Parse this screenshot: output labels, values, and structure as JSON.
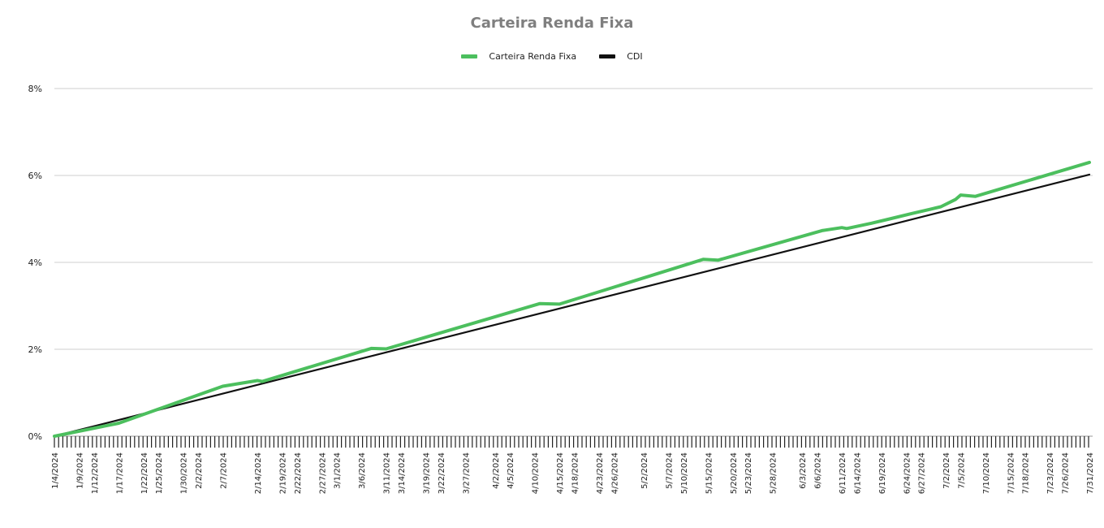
{
  "chart_data": {
    "type": "line",
    "title": "Carteira Renda Fixa",
    "xlabel": "",
    "ylabel": "",
    "legend_position": "top",
    "grid": true,
    "y_ticks": [
      "0%",
      "2%",
      "4%",
      "6%",
      "8%"
    ],
    "ylim": [
      0,
      8
    ],
    "x_range": [
      "2024-01-04",
      "2024-07-31"
    ],
    "x_tick_labels": [
      {
        "date": "2024-01-04",
        "label": "1/4/2024"
      },
      {
        "date": "2024-01-09",
        "label": "1/9/2024"
      },
      {
        "date": "2024-01-12",
        "label": "1/12/2024"
      },
      {
        "date": "2024-01-17",
        "label": "1/17/2024"
      },
      {
        "date": "2024-01-22",
        "label": "1/22/2024"
      },
      {
        "date": "2024-01-25",
        "label": "1/25/2024"
      },
      {
        "date": "2024-01-30",
        "label": "1/30/2024"
      },
      {
        "date": "2024-02-02",
        "label": "2/2/2024"
      },
      {
        "date": "2024-02-07",
        "label": "2/7/2024"
      },
      {
        "date": "2024-02-14",
        "label": "2/14/2024"
      },
      {
        "date": "2024-02-19",
        "label": "2/19/2024"
      },
      {
        "date": "2024-02-22",
        "label": "2/22/2024"
      },
      {
        "date": "2024-02-27",
        "label": "2/27/2024"
      },
      {
        "date": "2024-03-01",
        "label": "3/1/2024"
      },
      {
        "date": "2024-03-06",
        "label": "3/6/2024"
      },
      {
        "date": "2024-03-11",
        "label": "3/11/2024"
      },
      {
        "date": "2024-03-14",
        "label": "3/14/2024"
      },
      {
        "date": "2024-03-19",
        "label": "3/19/2024"
      },
      {
        "date": "2024-03-22",
        "label": "3/22/2024"
      },
      {
        "date": "2024-03-27",
        "label": "3/27/2024"
      },
      {
        "date": "2024-04-02",
        "label": "4/2/2024"
      },
      {
        "date": "2024-04-05",
        "label": "4/5/2024"
      },
      {
        "date": "2024-04-10",
        "label": "4/10/2024"
      },
      {
        "date": "2024-04-15",
        "label": "4/15/2024"
      },
      {
        "date": "2024-04-18",
        "label": "4/18/2024"
      },
      {
        "date": "2024-04-23",
        "label": "4/23/2024"
      },
      {
        "date": "2024-04-26",
        "label": "4/26/2024"
      },
      {
        "date": "2024-05-02",
        "label": "5/2/2024"
      },
      {
        "date": "2024-05-07",
        "label": "5/7/2024"
      },
      {
        "date": "2024-05-10",
        "label": "5/10/2024"
      },
      {
        "date": "2024-05-15",
        "label": "5/15/2024"
      },
      {
        "date": "2024-05-20",
        "label": "5/20/2024"
      },
      {
        "date": "2024-05-23",
        "label": "5/23/2024"
      },
      {
        "date": "2024-05-28",
        "label": "5/28/2024"
      },
      {
        "date": "2024-06-03",
        "label": "6/3/2024"
      },
      {
        "date": "2024-06-06",
        "label": "6/6/2024"
      },
      {
        "date": "2024-06-11",
        "label": "6/11/2024"
      },
      {
        "date": "2024-06-14",
        "label": "6/14/2024"
      },
      {
        "date": "2024-06-19",
        "label": "6/19/2024"
      },
      {
        "date": "2024-06-24",
        "label": "6/24/2024"
      },
      {
        "date": "2024-06-27",
        "label": "6/27/2024"
      },
      {
        "date": "2024-07-02",
        "label": "7/2/2024"
      },
      {
        "date": "2024-07-05",
        "label": "7/5/2024"
      },
      {
        "date": "2024-07-10",
        "label": "7/10/2024"
      },
      {
        "date": "2024-07-15",
        "label": "7/15/2024"
      },
      {
        "date": "2024-07-18",
        "label": "7/18/2024"
      },
      {
        "date": "2024-07-23",
        "label": "7/23/2024"
      },
      {
        "date": "2024-07-26",
        "label": "7/26/2024"
      },
      {
        "date": "2024-07-31",
        "label": "7/31/2024"
      }
    ],
    "series": [
      {
        "name": "Carteira Renda Fixa",
        "color": "#4cbf5e",
        "points": [
          {
            "x": "2024-01-04",
            "y": 0.0
          },
          {
            "x": "2024-01-17",
            "y": 0.3
          },
          {
            "x": "2024-02-07",
            "y": 1.15
          },
          {
            "x": "2024-02-14",
            "y": 1.28
          },
          {
            "x": "2024-02-15",
            "y": 1.26
          },
          {
            "x": "2024-03-08",
            "y": 2.02
          },
          {
            "x": "2024-03-11",
            "y": 2.01
          },
          {
            "x": "2024-04-11",
            "y": 3.05
          },
          {
            "x": "2024-04-15",
            "y": 3.04
          },
          {
            "x": "2024-05-14",
            "y": 4.07
          },
          {
            "x": "2024-05-17",
            "y": 4.05
          },
          {
            "x": "2024-06-07",
            "y": 4.73
          },
          {
            "x": "2024-06-11",
            "y": 4.8
          },
          {
            "x": "2024-06-12",
            "y": 4.78
          },
          {
            "x": "2024-06-17",
            "y": 4.9
          },
          {
            "x": "2024-06-21",
            "y": 5.01
          },
          {
            "x": "2024-06-25",
            "y": 5.12
          },
          {
            "x": "2024-07-01",
            "y": 5.28
          },
          {
            "x": "2024-07-04",
            "y": 5.45
          },
          {
            "x": "2024-07-05",
            "y": 5.55
          },
          {
            "x": "2024-07-08",
            "y": 5.52
          },
          {
            "x": "2024-07-31",
            "y": 6.3
          }
        ]
      },
      {
        "name": "CDI",
        "color": "#111111",
        "points": [
          {
            "x": "2024-01-04",
            "y": 0.0
          },
          {
            "x": "2024-07-31",
            "y": 6.02
          }
        ]
      }
    ]
  }
}
